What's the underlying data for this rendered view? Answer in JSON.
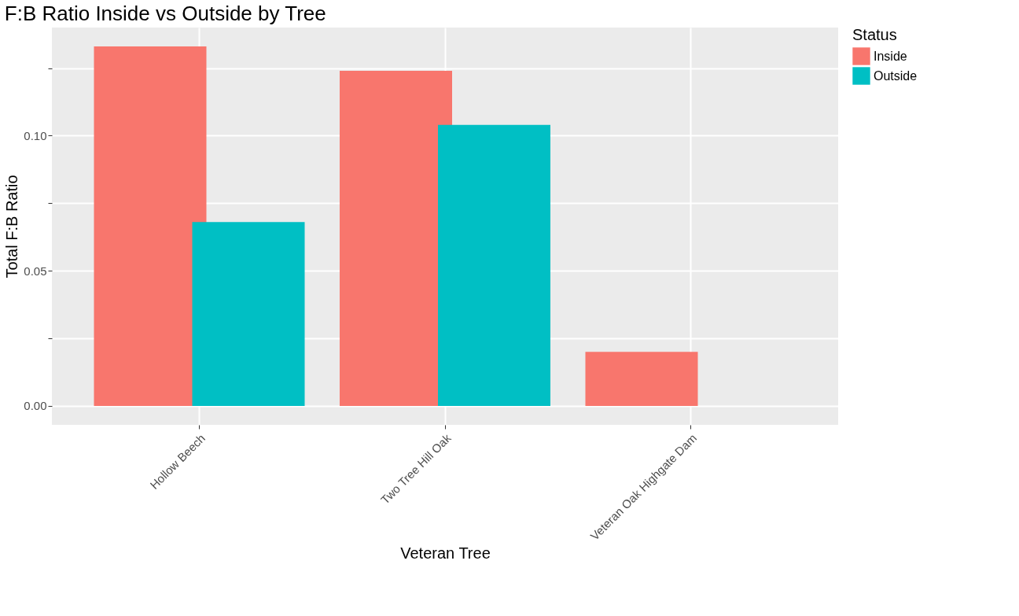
{
  "chart_data": {
    "type": "bar",
    "title": "F:B Ratio Inside vs Outside by Tree",
    "xlabel": "Veteran Tree",
    "ylabel": "Total F:B Ratio",
    "legend_title": "Status",
    "categories": [
      "Hollow Beech",
      "Two Tree Hill Oak",
      "Veteran Oak Highgate Dam"
    ],
    "series": [
      {
        "name": "Inside",
        "color": "#f8766d",
        "values": [
          0.133,
          0.124,
          0.02
        ]
      },
      {
        "name": "Outside",
        "color": "#00bfc4",
        "values": [
          0.068,
          0.104,
          null
        ]
      }
    ],
    "ylim": [
      -0.007,
      0.14
    ],
    "yticks": [
      {
        "value": 0,
        "label": "0.00"
      },
      {
        "value": 0.025,
        "label": null
      },
      {
        "value": 0.05,
        "label": "0.05"
      },
      {
        "value": 0.075,
        "label": null
      },
      {
        "value": 0.1,
        "label": "0.10"
      },
      {
        "value": 0.125,
        "label": null
      }
    ],
    "grid": true,
    "legend": "right"
  }
}
